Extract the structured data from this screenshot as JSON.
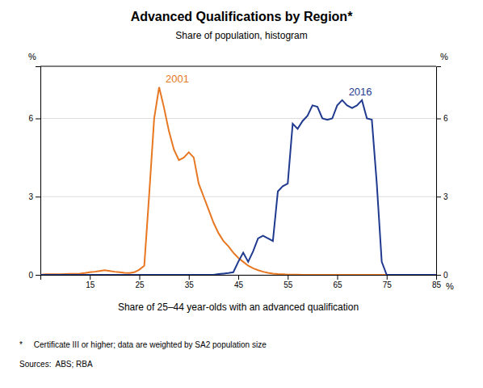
{
  "chart_data": {
    "type": "line",
    "title": "Advanced Qualifications by Region*",
    "subtitle": "Share of population, histogram",
    "x_label": "Share of 25–44 year-olds with an advanced qualification",
    "y_label": "%",
    "y2_label": "%",
    "annotations": [
      "%"
    ],
    "footnote": "*     Certificate III or higher; data are weighted by SA2 population size",
    "source": "Sources:  ABS; RBA",
    "x": [
      5,
      6,
      7,
      8,
      9,
      10,
      11,
      12,
      13,
      14,
      15,
      16,
      17,
      18,
      19,
      20,
      21,
      22,
      23,
      24,
      25,
      26,
      27,
      28,
      29,
      30,
      31,
      32,
      33,
      34,
      35,
      36,
      37,
      38,
      39,
      40,
      41,
      42,
      43,
      44,
      45,
      46,
      47,
      48,
      49,
      50,
      51,
      52,
      53,
      54,
      55,
      56,
      57,
      58,
      59,
      60,
      61,
      62,
      63,
      64,
      65,
      66,
      67,
      68,
      69,
      70,
      71,
      72,
      73,
      74,
      75,
      76,
      77,
      78,
      79,
      80,
      81,
      82,
      83,
      84,
      85
    ],
    "series": [
      {
        "name": "2001",
        "color": "#E87722",
        "values": [
          0.0,
          0.02,
          0.02,
          0.02,
          0.02,
          0.03,
          0.04,
          0.04,
          0.05,
          0.07,
          0.1,
          0.12,
          0.15,
          0.18,
          0.15,
          0.12,
          0.1,
          0.08,
          0.07,
          0.1,
          0.2,
          0.35,
          3.1,
          6.0,
          7.2,
          6.4,
          5.5,
          4.8,
          4.4,
          4.5,
          4.7,
          4.5,
          3.5,
          3.0,
          2.5,
          2.0,
          1.6,
          1.3,
          1.1,
          0.85,
          0.65,
          0.5,
          0.35,
          0.25,
          0.18,
          0.12,
          0.08,
          0.05,
          0.03,
          0.02,
          0.01,
          0.01,
          0.01,
          0.0,
          0.0,
          0.0,
          0.0,
          0.0,
          0.0,
          0.0,
          0.0,
          0.0,
          0.0,
          0.0,
          0.0,
          0.0,
          0.0,
          0.0,
          0.0,
          0.0,
          0.0,
          0.0,
          0.0,
          0.0,
          0.0,
          0.0,
          0.0,
          0.0,
          0.0,
          0.0,
          0.0
        ]
      },
      {
        "name": "2016",
        "color": "#1F3A8F",
        "values": [
          0.0,
          0.0,
          0.0,
          0.0,
          0.0,
          0.0,
          0.0,
          0.0,
          0.0,
          0.0,
          0.0,
          0.0,
          0.0,
          0.0,
          0.0,
          0.0,
          0.0,
          0.0,
          0.0,
          0.0,
          0.0,
          0.0,
          0.0,
          0.0,
          0.0,
          0.0,
          0.0,
          0.0,
          0.0,
          0.0,
          0.0,
          0.0,
          0.0,
          0.0,
          0.0,
          0.0,
          0.03,
          0.05,
          0.07,
          0.1,
          0.5,
          0.85,
          0.5,
          0.9,
          1.4,
          1.5,
          1.4,
          1.3,
          3.2,
          3.4,
          3.5,
          5.8,
          5.6,
          5.9,
          6.1,
          6.5,
          6.45,
          6.0,
          5.95,
          6.0,
          6.5,
          6.7,
          6.5,
          6.4,
          6.5,
          6.7,
          6.0,
          5.95,
          3.5,
          0.5,
          0.0,
          0.0,
          0.0,
          0.0,
          0.0,
          0.0,
          0.0,
          0.0,
          0.0,
          0.0,
          0.0
        ]
      }
    ],
    "xlim": [
      5,
      85
    ],
    "xticks": [
      15,
      25,
      35,
      45,
      55,
      65,
      75,
      85
    ],
    "ylim": [
      0,
      8
    ],
    "yticks": [
      0,
      3,
      6
    ],
    "y2lim": [
      0,
      8
    ],
    "y2ticks": [
      0,
      3,
      6
    ],
    "grid": true
  }
}
